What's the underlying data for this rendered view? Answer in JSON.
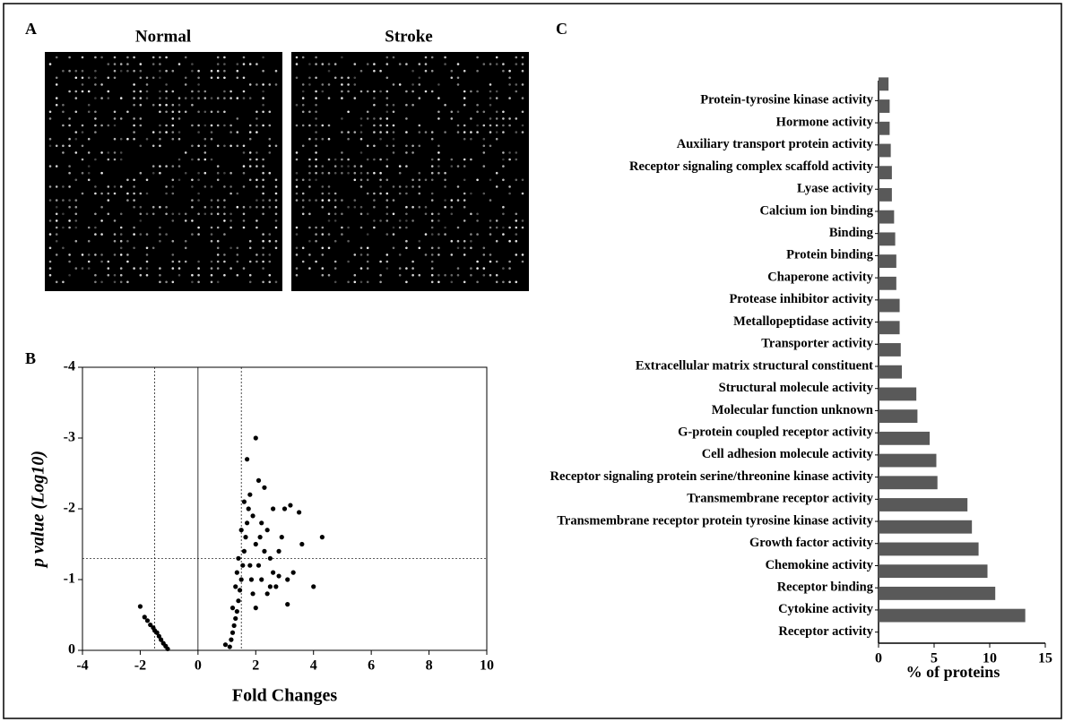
{
  "panel_labels": [
    "A",
    "B",
    "C"
  ],
  "array_images": {
    "titles": [
      "Normal",
      "Stroke"
    ]
  },
  "chart_data": [
    {
      "type": "scatter",
      "xlabel": "Fold Changes",
      "ylabel": "p value (Log10)",
      "color": "#000000",
      "x": [
        -2,
        -1.85,
        -1.75,
        -1.65,
        -1.55,
        -1.5,
        -1.42,
        -1.35,
        -1.28,
        -1.2,
        -1.12,
        -1.05,
        0.95,
        1.1,
        1.15,
        1.2,
        1.25,
        1.3,
        1.35,
        1.4,
        1.45,
        1.5,
        1.55,
        1.6,
        1.65,
        1.7,
        1.75,
        1.7,
        2.0,
        1.8,
        1.9,
        2.0,
        2.1,
        2.2,
        2.3,
        2.4,
        2.5,
        2.6,
        2.7,
        2.8,
        2.9,
        3.0,
        3.1,
        3.2,
        3.3,
        3.5,
        3.6,
        4.0,
        4.3,
        1.3,
        1.4,
        1.5,
        1.6,
        1.8,
        1.9,
        2.1,
        2.2,
        2.4,
        2.6,
        2.0,
        1.85,
        2.3,
        1.2,
        1.35,
        2.5,
        2.8,
        3.1,
        2.15
      ],
      "y": [
        -0.62,
        -0.47,
        -0.42,
        -0.36,
        -0.32,
        -0.28,
        -0.25,
        -0.2,
        -0.15,
        -0.1,
        -0.06,
        -0.02,
        -0.08,
        -0.05,
        -0.15,
        -0.25,
        -0.35,
        -0.45,
        -0.55,
        -0.7,
        -0.85,
        -1.0,
        -1.2,
        -1.4,
        -1.6,
        -1.8,
        -2.0,
        -2.7,
        -3.0,
        -2.2,
        -1.9,
        -1.5,
        -1.2,
        -1.0,
        -2.3,
        -1.7,
        -1.3,
        -1.1,
        -0.9,
        -1.4,
        -1.6,
        -2.0,
        -1.0,
        -2.05,
        -1.1,
        -1.95,
        -1.5,
        -0.9,
        -1.6,
        -0.9,
        -1.3,
        -1.7,
        -2.1,
        -1.2,
        -0.8,
        -2.4,
        -1.8,
        -0.8,
        -2.0,
        -0.6,
        -1.0,
        -1.4,
        -0.6,
        -1.1,
        -0.9,
        -1.05,
        -0.65,
        -1.6
      ],
      "xlim": [
        -4,
        10
      ],
      "xticks": [
        -4,
        -2,
        0,
        2,
        4,
        6,
        8,
        10
      ],
      "ylim": [
        0,
        -4
      ],
      "yticks": [
        0,
        -1,
        -2,
        -3,
        -4
      ],
      "solid_vlines": [
        0
      ],
      "dashed_vlines": [
        -1.5,
        1.5
      ],
      "dashed_hlines": [
        -1.3
      ]
    },
    {
      "type": "hbar",
      "xlabel": "% of proteins",
      "color": "#595959",
      "categories": [
        "Protein-tyrosine kinase activity",
        "Hormone activity",
        "Auxiliary transport protein activity",
        "Receptor signaling complex scaffold activity",
        "Lyase activity",
        "Calcium ion binding",
        "Binding",
        "Protein binding",
        "Chaperone activity",
        "Protease inhibitor activity",
        "Metallopeptidase activity",
        "Transporter activity",
        "Extracellular matrix structural constituent",
        "Structural molecule activity",
        "Molecular function unknown",
        "G-protein coupled receptor activity",
        "Cell adhesion molecule activity",
        "Receptor signaling protein serine/threonine kinase activity",
        "Transmembrane receptor activity",
        "Transmembrane receptor protein tyrosine kinase activity",
        "Growth factor activity",
        "Chemokine activity",
        "Receptor binding",
        "Cytokine activity",
        "Receptor activity"
      ],
      "values": [
        0.9,
        1.0,
        1.0,
        1.1,
        1.2,
        1.2,
        1.4,
        1.5,
        1.6,
        1.6,
        1.9,
        1.9,
        2.0,
        2.1,
        3.4,
        3.5,
        4.6,
        5.2,
        5.3,
        8.0,
        8.4,
        9.0,
        9.8,
        10.5,
        13.2
      ],
      "xlim": [
        0,
        15
      ],
      "xticks": [
        0,
        5,
        10,
        15
      ]
    }
  ]
}
